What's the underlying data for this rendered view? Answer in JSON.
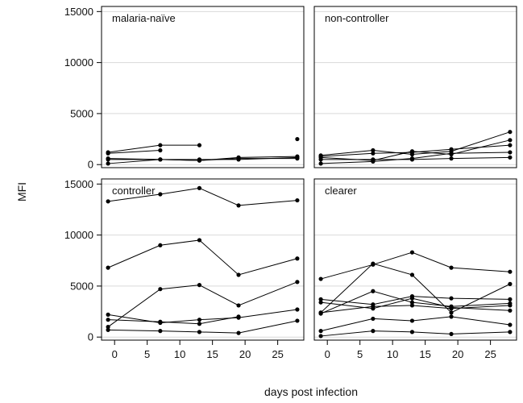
{
  "figure": {
    "xlabel": "days post infection",
    "ylabel": "MFI"
  },
  "colors": {
    "line": "#000000",
    "grid": "#d9d9d9",
    "frame": "#000000",
    "background": "#ffffff"
  },
  "chart_data": [
    {
      "type": "line",
      "title": "malaria-naïve",
      "x": [
        -1,
        7,
        13,
        19,
        28
      ],
      "xlim": [
        -2,
        29
      ],
      "ylim": [
        -300,
        15500
      ],
      "xticks": [
        0,
        5,
        10,
        15,
        20,
        25
      ],
      "yticks": [
        0,
        5000,
        10000,
        15000
      ],
      "grid": true,
      "series": [
        {
          "values": [
            1200,
            1900,
            1900,
            null,
            2500
          ]
        },
        {
          "values": [
            1100,
            1400,
            null,
            null,
            null
          ]
        },
        {
          "values": [
            100,
            500,
            500,
            500,
            700
          ]
        },
        {
          "values": [
            600,
            500,
            400,
            700,
            800
          ]
        },
        {
          "values": [
            500,
            500,
            400,
            600,
            600
          ]
        }
      ]
    },
    {
      "type": "line",
      "title": "non-controller",
      "x": [
        -1,
        7,
        13,
        19,
        28
      ],
      "xlim": [
        -2,
        29
      ],
      "ylim": [
        -300,
        15500
      ],
      "xticks": [
        0,
        5,
        10,
        15,
        20,
        25
      ],
      "yticks": [
        0,
        5000,
        10000,
        15000
      ],
      "grid": true,
      "series": [
        {
          "values": [
            900,
            1400,
            1000,
            1300,
            3200
          ]
        },
        {
          "values": [
            800,
            1100,
            1200,
            1500,
            1900
          ]
        },
        {
          "values": [
            700,
            400,
            1300,
            1000,
            2400
          ]
        },
        {
          "values": [
            100,
            300,
            600,
            1100,
            1200
          ]
        },
        {
          "values": [
            500,
            500,
            500,
            600,
            700
          ]
        }
      ]
    },
    {
      "type": "line",
      "title": "controller",
      "x": [
        -1,
        7,
        13,
        19,
        28
      ],
      "xlim": [
        -2,
        29
      ],
      "ylim": [
        -300,
        15500
      ],
      "xticks": [
        0,
        5,
        10,
        15,
        20,
        25
      ],
      "yticks": [
        0,
        5000,
        10000,
        15000
      ],
      "grid": true,
      "series": [
        {
          "values": [
            13300,
            14000,
            14600,
            12900,
            13400
          ]
        },
        {
          "values": [
            6800,
            9000,
            9500,
            6100,
            7700
          ]
        },
        {
          "values": [
            1000,
            4700,
            5100,
            3100,
            5400
          ]
        },
        {
          "values": [
            2200,
            1400,
            1700,
            1900,
            2700
          ]
        },
        {
          "values": [
            1700,
            1500,
            1300,
            2000,
            null
          ]
        },
        {
          "values": [
            700,
            600,
            500,
            400,
            1600
          ]
        }
      ]
    },
    {
      "type": "line",
      "title": "clearer",
      "x": [
        -1,
        7,
        13,
        19,
        28
      ],
      "xlim": [
        -2,
        29
      ],
      "ylim": [
        -300,
        15500
      ],
      "xticks": [
        0,
        5,
        10,
        15,
        20,
        25
      ],
      "yticks": [
        0,
        5000,
        10000,
        15000
      ],
      "grid": true,
      "series": [
        {
          "values": [
            5700,
            7100,
            8300,
            6800,
            6400
          ]
        },
        {
          "values": [
            2400,
            7200,
            6100,
            2400,
            5200
          ]
        },
        {
          "values": [
            3700,
            3200,
            4000,
            3800,
            3700
          ]
        },
        {
          "values": [
            2300,
            4500,
            3400,
            3000,
            3300
          ]
        },
        {
          "values": [
            3400,
            2800,
            3800,
            2900,
            2600
          ]
        },
        {
          "values": [
            2400,
            3000,
            3100,
            2800,
            3100
          ]
        },
        {
          "values": [
            600,
            1800,
            1600,
            2000,
            1200
          ]
        },
        {
          "values": [
            100,
            600,
            500,
            300,
            500
          ]
        }
      ]
    }
  ]
}
